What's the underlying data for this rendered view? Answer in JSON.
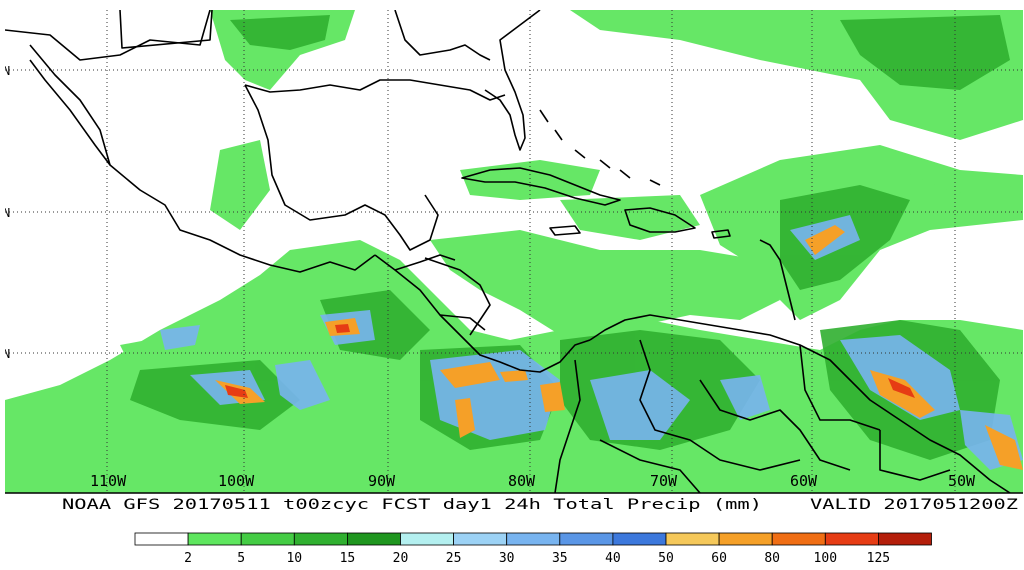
{
  "map": {
    "longitude_labels": [
      "110W",
      "100W",
      "90W",
      "80W",
      "70W",
      "60W",
      "50W"
    ],
    "latitude_marks": [
      "N",
      "N",
      "N"
    ],
    "caption": "NOAA GFS 20170511 t00zcyc FCST day1 24h Total Precip (mm)",
    "valid": "VALID 2017051200Z"
  },
  "legend": {
    "levels": [
      "2",
      "5",
      "10",
      "15",
      "20",
      "25",
      "30",
      "35",
      "40",
      "50",
      "60",
      "80",
      "100",
      "125"
    ],
    "colors": [
      "#ffffff",
      "#5ee65e",
      "#44cc44",
      "#30b030",
      "#1f961f",
      "#b4f0f0",
      "#9cd2f5",
      "#78b4f0",
      "#5a96e6",
      "#3c78dc",
      "#f5c85a",
      "#f5a028",
      "#f06e14",
      "#e63c14",
      "#b41e0a"
    ]
  }
}
